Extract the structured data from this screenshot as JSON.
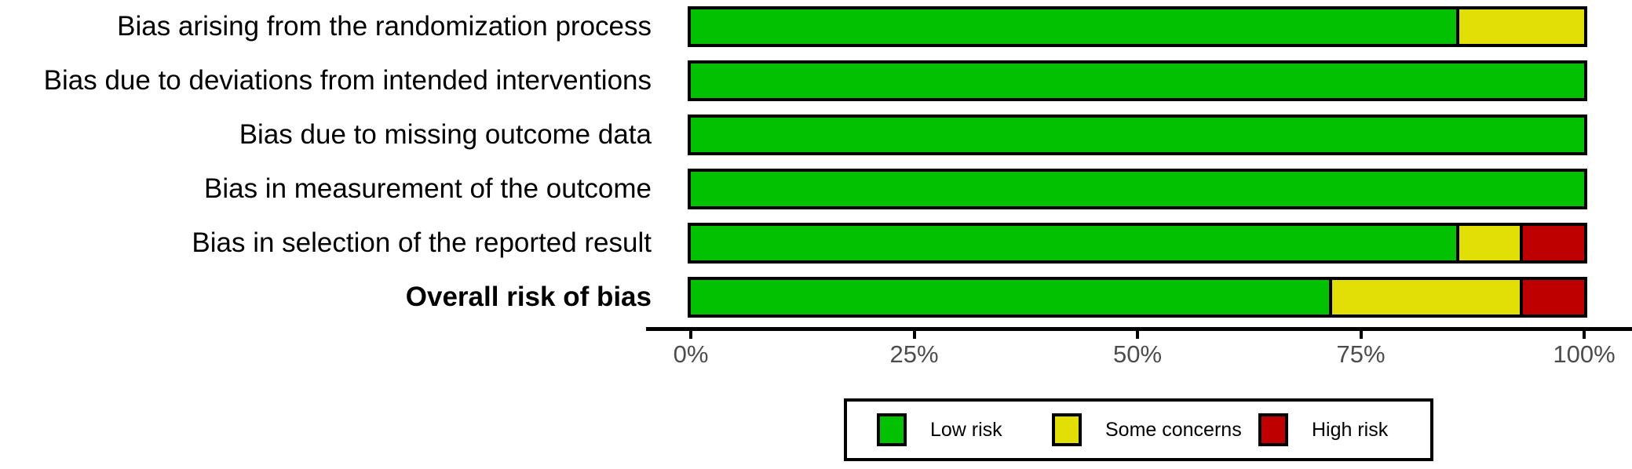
{
  "chart_data": {
    "type": "bar",
    "orientation": "horizontal-stacked",
    "title": "",
    "xlabel": "",
    "ylabel": "",
    "xlim": [
      0,
      100
    ],
    "grid": false,
    "categories": [
      "Bias arising from the randomization process",
      "Bias due to deviations from intended interventions",
      "Bias due to missing outcome data",
      "Bias in measurement of the outcome",
      "Bias in selection of the reported result",
      "Overall risk of bias"
    ],
    "bold_categories": [
      "Overall risk of bias"
    ],
    "series": [
      {
        "name": "Low risk",
        "color": "#02C100",
        "values": [
          85.7,
          100,
          100,
          100,
          85.7,
          71.4
        ]
      },
      {
        "name": "Some concerns",
        "color": "#E2DF07",
        "values": [
          14.3,
          0,
          0,
          0,
          7.1,
          21.4
        ]
      },
      {
        "name": "High risk",
        "color": "#BF0000",
        "values": [
          0,
          0,
          0,
          0,
          7.2,
          7.2
        ]
      }
    ],
    "x_ticks": [
      {
        "label": "0%",
        "value": 0
      },
      {
        "label": "25%",
        "value": 25
      },
      {
        "label": "50%",
        "value": 50
      },
      {
        "label": "75%",
        "value": 75
      },
      {
        "label": "100%",
        "value": 100
      }
    ],
    "legend": {
      "position": "bottom",
      "entries": [
        {
          "label": "Low risk",
          "color": "#02C100"
        },
        {
          "label": "Some concerns",
          "color": "#E2DF07"
        },
        {
          "label": "High risk",
          "color": "#BF0000"
        }
      ]
    },
    "colors": {
      "low_risk": "#02C100",
      "some_concerns": "#E2DF07",
      "high_risk": "#BF0000",
      "axis_text": "#4d4d4d",
      "label_text": "#000000",
      "background": "#ffffff"
    }
  }
}
